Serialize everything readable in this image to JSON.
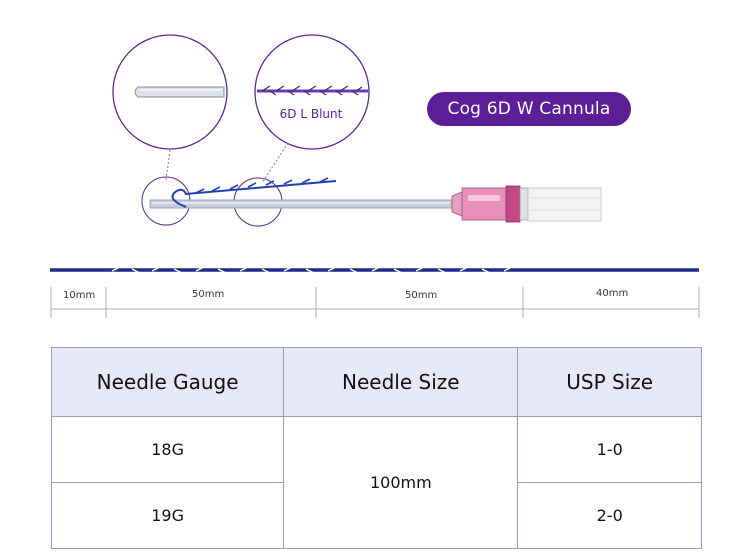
{
  "product": {
    "title": "Cog 6D W Cannula",
    "detail_label": "6D L Blunt"
  },
  "dimensions": [
    "10mm",
    "50mm",
    "50mm",
    "40mm"
  ],
  "table": {
    "headers": [
      "Needle Gauge",
      "Needle Size",
      "USP Size"
    ],
    "rows": [
      {
        "gauge": "18G",
        "usp": "1-0"
      },
      {
        "gauge": "19G",
        "usp": "2-0"
      }
    ],
    "needle_size": "100mm"
  },
  "colors": {
    "accent": "#5a1e96",
    "thread": "#1e2a8c",
    "hub": "#e890b8"
  }
}
